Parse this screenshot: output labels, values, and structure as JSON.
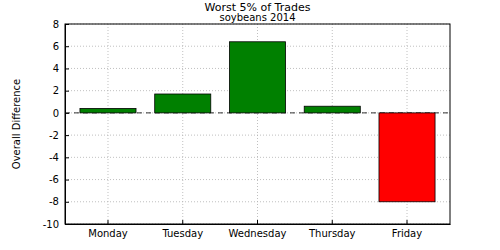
{
  "chart_data": {
    "type": "bar",
    "title": "Worst 5% of Trades",
    "subtitle": "soybeans 2014",
    "y_label": "Overall Difference",
    "categories": [
      "Monday",
      "Tuesday",
      "Wednesday",
      "Thursday",
      "Friday"
    ],
    "values": [
      0.4,
      1.7,
      6.4,
      0.6,
      -8.0
    ],
    "colors": [
      "#008000",
      "#008000",
      "#008000",
      "#008000",
      "#ff0000"
    ],
    "ylim": [
      -10,
      8
    ],
    "yticks": [
      -10,
      -8,
      -6,
      -4,
      -2,
      0,
      2,
      4,
      6,
      8
    ],
    "grid": true
  }
}
